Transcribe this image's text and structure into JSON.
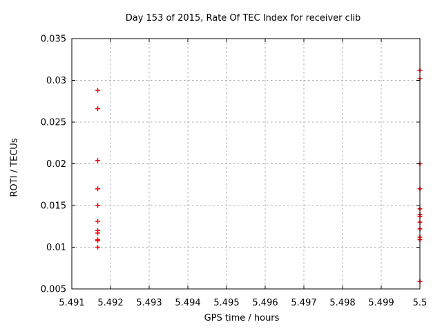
{
  "chart_data": {
    "type": "scatter",
    "title": "Day 153 of 2015, Rate Of TEC Index for receiver clib",
    "xlabel": "GPS time / hours",
    "ylabel": "ROTI / TECUs",
    "xlim": [
      5.491,
      5.5
    ],
    "ylim": [
      0.005,
      0.035
    ],
    "xticks": [
      5.491,
      5.492,
      5.493,
      5.494,
      5.495,
      5.496,
      5.497,
      5.498,
      5.499,
      5.5
    ],
    "xtick_labels": [
      "5.491",
      "5.492",
      "5.493",
      "5.494",
      "5.495",
      "5.496",
      "5.497",
      "5.498",
      "5.499",
      "5.5"
    ],
    "yticks": [
      0.005,
      0.01,
      0.015,
      0.02,
      0.025,
      0.03,
      0.035
    ],
    "ytick_labels": [
      "0.005",
      "0.01",
      "0.015",
      "0.02",
      "0.025",
      "0.03",
      "0.035"
    ],
    "grid": true,
    "legend": "none",
    "marker": {
      "shape": "plus",
      "color": "#ff0000",
      "size": 7
    },
    "colors": {
      "marker": "#ff0000",
      "grid": "#ababab",
      "border": "#000000",
      "text": "#000000",
      "background": "#ffffff"
    },
    "series": [
      {
        "name": "ROTI",
        "points": [
          [
            5.49167,
            0.0288
          ],
          [
            5.49167,
            0.0266
          ],
          [
            5.49167,
            0.0204
          ],
          [
            5.49167,
            0.017
          ],
          [
            5.49167,
            0.015
          ],
          [
            5.49167,
            0.0131
          ],
          [
            5.49167,
            0.012
          ],
          [
            5.49167,
            0.0117
          ],
          [
            5.49167,
            0.0109
          ],
          [
            5.49167,
            0.0108
          ],
          [
            5.49167,
            0.01
          ],
          [
            5.5,
            0.0312
          ],
          [
            5.5,
            0.0302
          ],
          [
            5.5,
            0.02
          ],
          [
            5.5,
            0.017
          ],
          [
            5.5,
            0.0146
          ],
          [
            5.5,
            0.0139
          ],
          [
            5.5,
            0.0137
          ],
          [
            5.5,
            0.013
          ],
          [
            5.5,
            0.0122
          ],
          [
            5.5,
            0.0112
          ],
          [
            5.5,
            0.0109
          ],
          [
            5.5,
            0.0059
          ]
        ]
      }
    ]
  }
}
